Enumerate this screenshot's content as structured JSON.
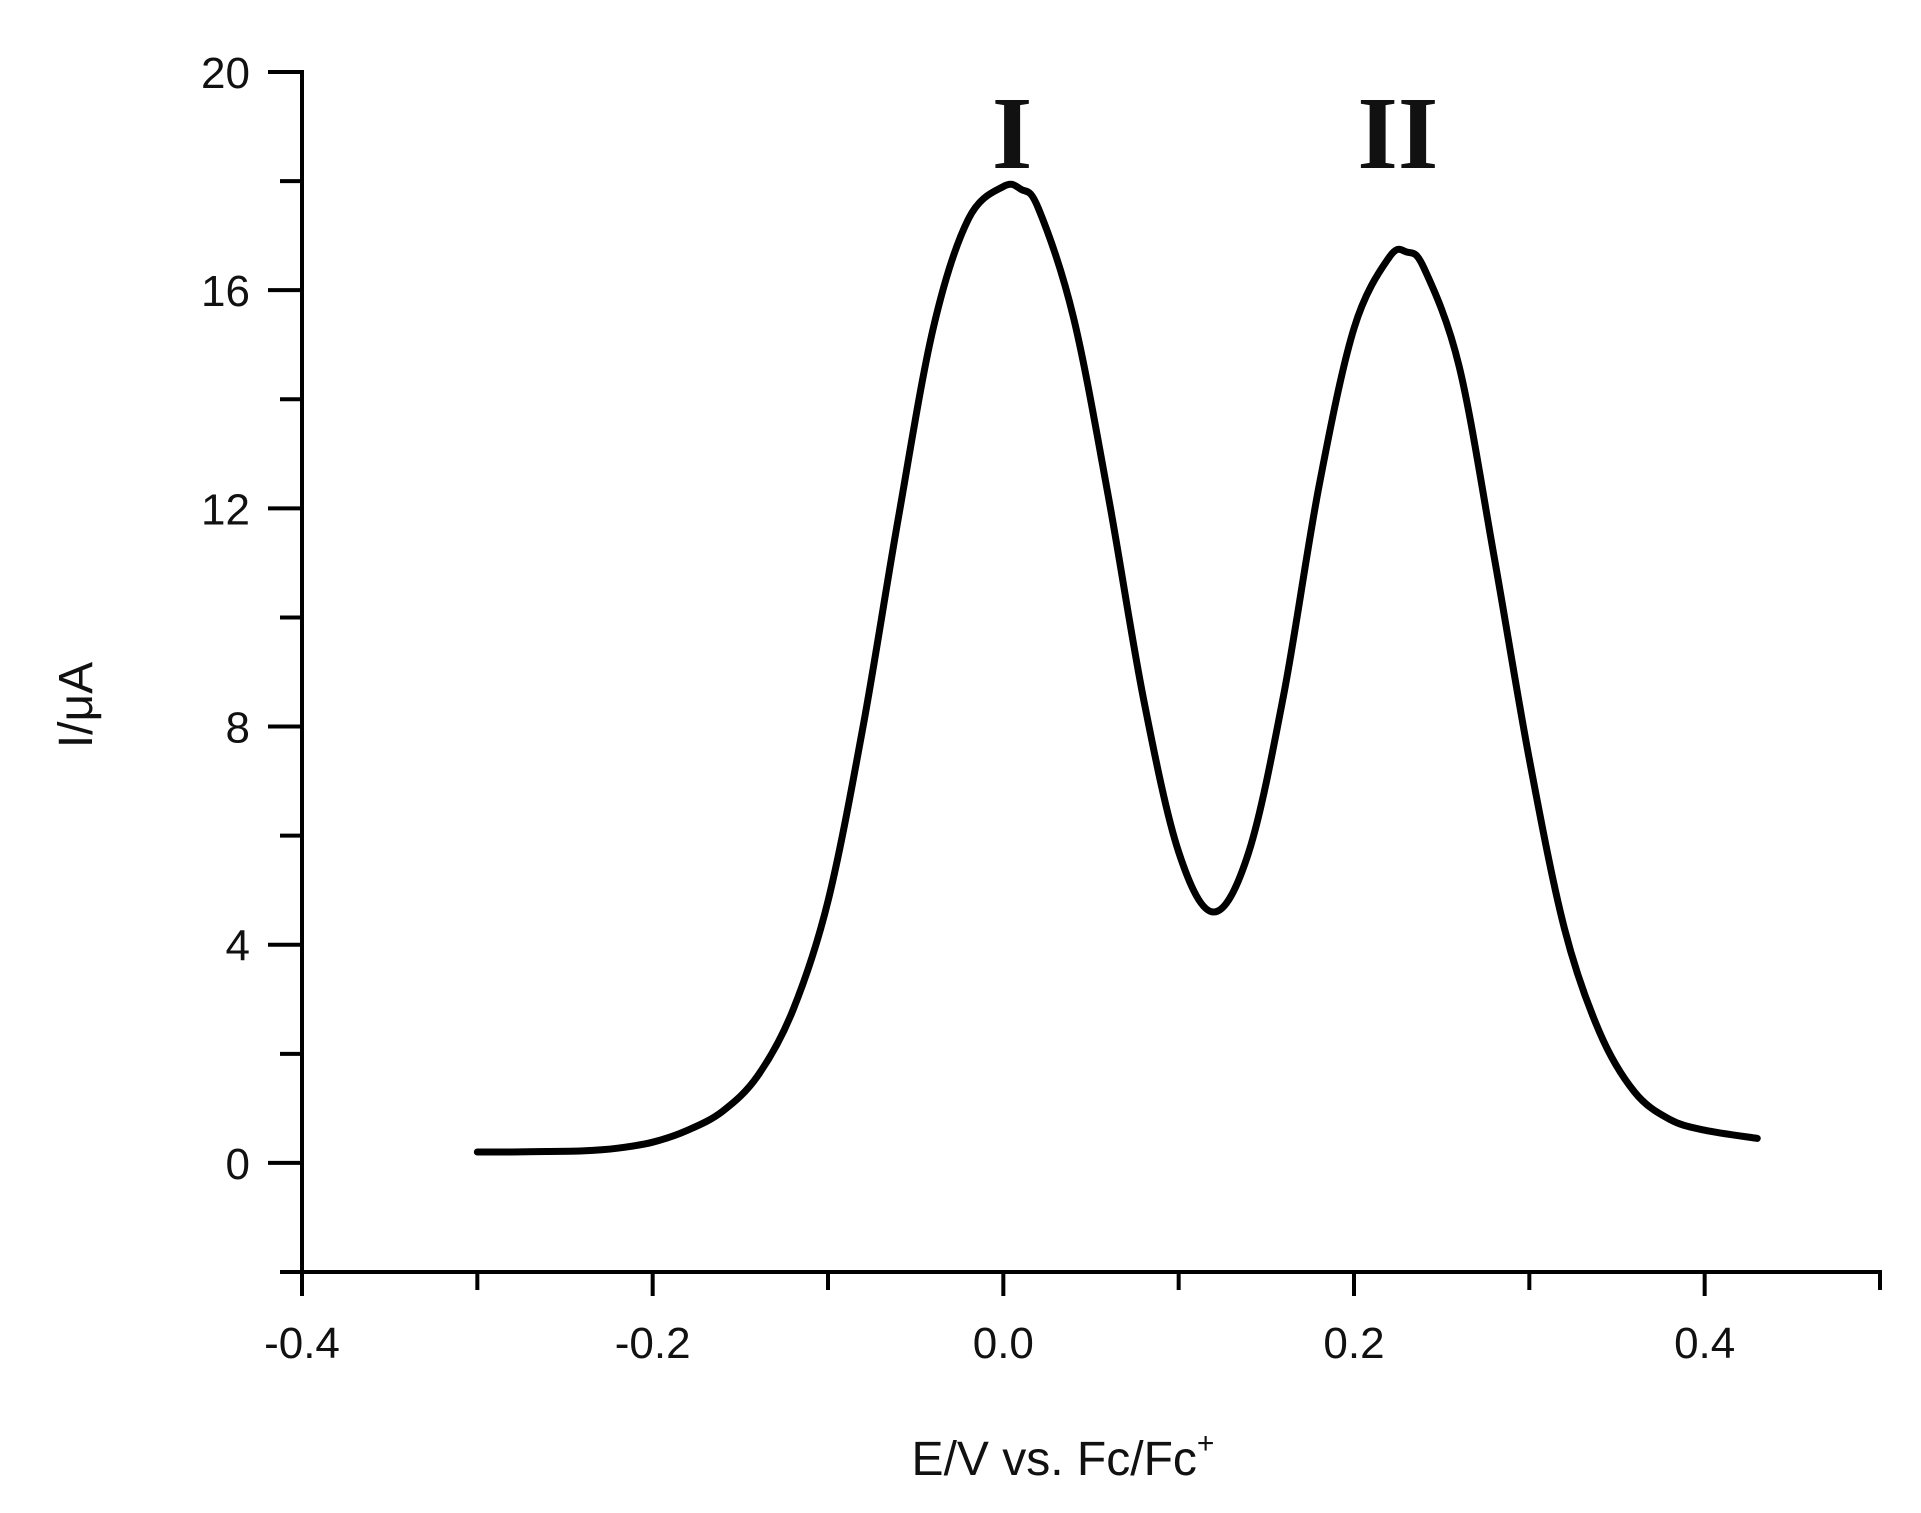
{
  "chart_data": {
    "type": "line",
    "title": "",
    "xlabel": "E/V vs. Fc/Fc",
    "xlabel_sup": "+",
    "ylabel": "I/μA",
    "xlim": [
      -0.4,
      0.5
    ],
    "ylim": [
      -2,
      20
    ],
    "x_ticks": [
      -0.4,
      -0.2,
      0.0,
      0.2,
      0.4
    ],
    "x_tick_labels": [
      "-0.4",
      "-0.2",
      "0.0",
      "0.2",
      "0.4"
    ],
    "x_minor_step": 0.1,
    "y_ticks": [
      0,
      4,
      8,
      12,
      16,
      20
    ],
    "y_tick_labels": [
      "0",
      "4",
      "8",
      "12",
      "16",
      "20"
    ],
    "y_minor_step": 2,
    "grid": false,
    "line_color": "#000000",
    "annotations": [
      {
        "text": "I",
        "x": 0.005,
        "y": 18.9
      },
      {
        "text": "II",
        "x": 0.225,
        "y": 18.9
      }
    ],
    "series": [
      {
        "x": [
          -0.3,
          -0.28,
          -0.26,
          -0.24,
          -0.22,
          -0.2,
          -0.18,
          -0.16,
          -0.14,
          -0.12,
          -0.1,
          -0.08,
          -0.06,
          -0.04,
          -0.02,
          0.0,
          0.01,
          0.02,
          0.04,
          0.06,
          0.08,
          0.1,
          0.12,
          0.14,
          0.16,
          0.18,
          0.2,
          0.22,
          0.23,
          0.24,
          0.26,
          0.28,
          0.3,
          0.32,
          0.34,
          0.36,
          0.38,
          0.4,
          0.43
        ],
        "y": [
          0.2,
          0.2,
          0.21,
          0.22,
          0.27,
          0.38,
          0.6,
          0.95,
          1.6,
          2.8,
          4.8,
          8.0,
          11.8,
          15.3,
          17.3,
          17.9,
          17.85,
          17.5,
          15.5,
          12.2,
          8.5,
          5.7,
          4.6,
          5.7,
          8.6,
          12.4,
          15.3,
          16.6,
          16.7,
          16.4,
          14.6,
          11.1,
          7.4,
          4.3,
          2.4,
          1.3,
          0.8,
          0.6,
          0.45
        ]
      }
    ]
  }
}
